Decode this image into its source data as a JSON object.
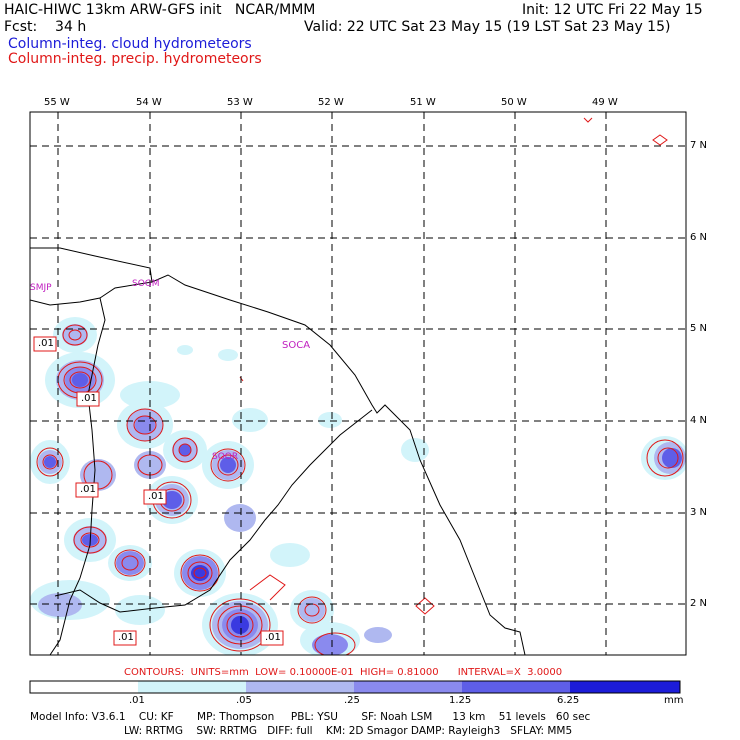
{
  "header": {
    "title_left": "HAIC-HIWC 13km ARW-GFS init   NCAR/MMM",
    "init": "Init: 12 UTC Fri 22 May 15",
    "fcst": "Fcst:    34 h",
    "valid": "Valid: 22 UTC Sat 23 May 15 (19 LST Sat 23 May 15)",
    "field_cloud": "Column-integ. cloud hydrometeors",
    "field_precip": "Column-integ. precip. hydrometeors"
  },
  "axes": {
    "lon_labels": [
      "55 W",
      "54 W",
      "53 W",
      "52 W",
      "51 W",
      "50 W",
      "49 W"
    ],
    "lat_labels": [
      "7 N",
      "6 N",
      "5 N",
      "4 N",
      "3 N",
      "2 N"
    ]
  },
  "place_labels": [
    "SMJP",
    "SOGM",
    "SOCA",
    "SOOR"
  ],
  "contour_labels": [
    ".01",
    ".01",
    ".01",
    ".01",
    ".01",
    ".01"
  ],
  "contours_info": "CONTOURS:  UNITS=mm  LOW= 0.10000E-01  HIGH= 0.81000      INTERVAL=X  3.0000",
  "colorbar": {
    "tick_labels": [
      ".01",
      ".05",
      ".25",
      "1.25",
      "6.25"
    ],
    "units": "mm",
    "colors": [
      "#ffffff",
      "#d2f4fa",
      "#afb8f0",
      "#8a8aee",
      "#5e5ee8",
      "#3a3ae0",
      "#1c1cd8"
    ]
  },
  "model_info": {
    "line1": "Model Info: V3.6.1    CU: KF       MP: Thompson     PBL: YSU       SF: Noah LSM      13 km    51 levels   60 sec",
    "line2": "LW: RRTMG    SW: RRTMG   DIFF: full    KM: 2D Smagor DAMP: Rayleigh3   SFLAY: MM5"
  }
}
